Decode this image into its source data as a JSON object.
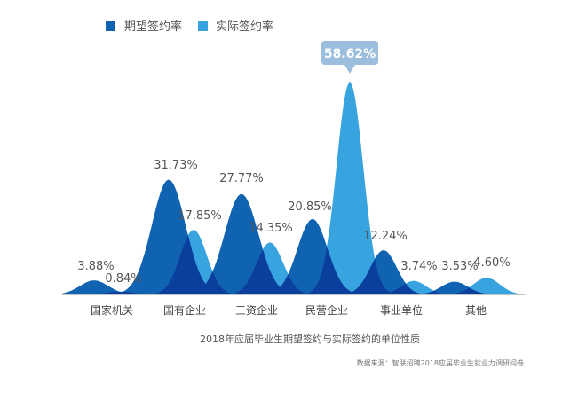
{
  "chart_data": {
    "type": "area",
    "categories": [
      "国家机关",
      "国有企业",
      "三资企业",
      "民营企业",
      "事业单位",
      "其他"
    ],
    "series": [
      {
        "name": "期望签约率",
        "values": [
          3.88,
          31.73,
          27.77,
          20.85,
          12.24,
          3.53
        ],
        "labels": [
          "3.88%",
          "31.73%",
          "27.77%",
          "20.85%",
          "12.24%",
          "3.53%"
        ]
      },
      {
        "name": "实际签约率",
        "values": [
          0.84,
          17.85,
          14.35,
          58.62,
          3.74,
          4.6
        ],
        "labels": [
          "0.84%",
          "17.85%",
          "14.35%",
          "58.62%",
          "3.74%",
          "4.60%"
        ]
      }
    ],
    "highlight": {
      "series": 1,
      "index": 3,
      "label": "58.62%"
    },
    "ylim": [
      0,
      58.62
    ],
    "legend_position": "top-left",
    "grid": false,
    "caption": "2018年应届毕业生期望签约与实际签约的单位性质",
    "source": "数据来源：智联招聘2018应届毕业生就业力调研问卷"
  },
  "colors": {
    "expected": "#0F63B0",
    "actual": "#37A4E0",
    "overlap": "#0A3F9E",
    "callout": "#9BBEDC",
    "baseline": "#888888"
  }
}
